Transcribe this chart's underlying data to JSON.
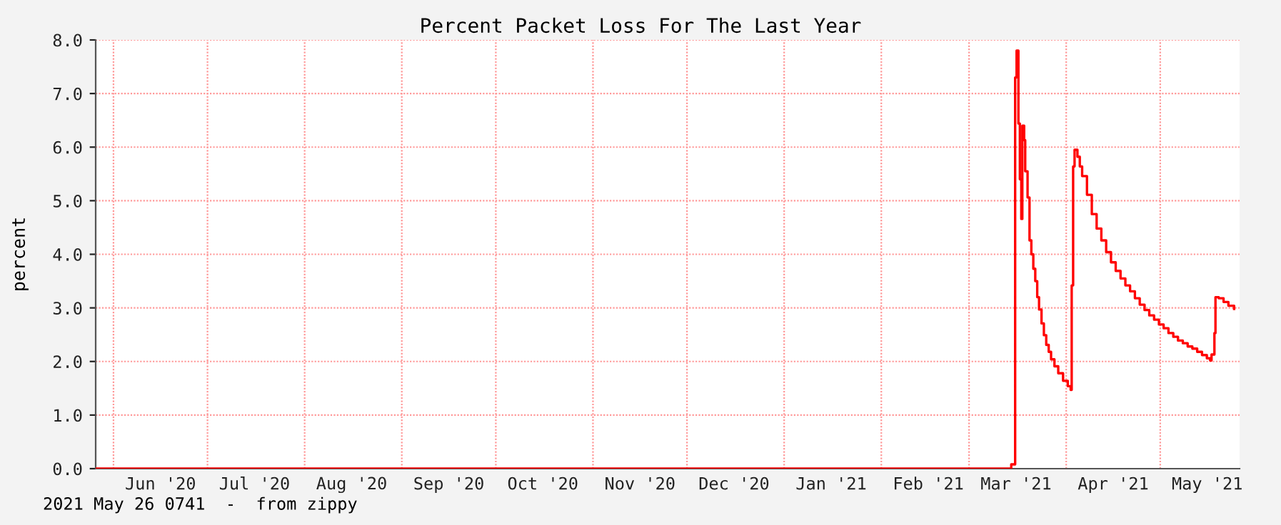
{
  "chart_data": {
    "type": "step",
    "title": "Percent Packet Loss For The Last Year",
    "ylabel": "percent",
    "annotations": [
      "2021 May 26 0741  -  from zippy"
    ],
    "x": [
      "2020-05-26T08:00",
      "2021-03-14T11:00",
      "2021-03-15T17:00",
      "2021-03-16T04:00",
      "2021-03-16T18:00",
      "2021-03-17T05:00",
      "2021-03-17T16:00",
      "2021-03-18T00:00",
      "2021-03-18T14:00",
      "2021-03-18T22:00",
      "2021-03-19T16:00",
      "2021-03-20T07:00",
      "2021-03-20T21:00",
      "2021-03-21T12:00",
      "2021-03-22T03:00",
      "2021-03-22T18:00",
      "2021-03-23T08:00",
      "2021-03-24T03:00",
      "2021-03-24T21:00",
      "2021-03-25T15:00",
      "2021-03-26T10:00",
      "2021-03-27T04:00",
      "2021-03-28T06:00",
      "2021-03-29T11:00",
      "2021-03-31T00:00",
      "2021-04-01T12:00",
      "2021-04-02T10:00",
      "2021-04-02T18:00",
      "2021-04-03T05:00",
      "2021-04-03T16:00",
      "2021-04-04T14:00",
      "2021-04-05T08:00",
      "2021-04-06T02:00",
      "2021-04-07T15:00",
      "2021-04-09T04:00",
      "2021-04-10T17:00",
      "2021-04-12T05:00",
      "2021-04-13T18:00",
      "2021-04-15T07:00",
      "2021-04-16T19:00",
      "2021-04-18T08:00",
      "2021-04-19T21:00",
      "2021-04-21T09:00",
      "2021-04-22T22:00",
      "2021-04-24T11:00",
      "2021-04-26T00:00",
      "2021-04-27T12:00",
      "2021-04-29T01:00",
      "2021-04-30T14:00",
      "2021-05-02T02:00",
      "2021-05-03T15:00",
      "2021-05-05T04:00",
      "2021-05-06T16:00",
      "2021-05-08T05:00",
      "2021-05-09T18:00",
      "2021-05-11T06:00",
      "2021-05-12T19:00",
      "2021-05-14T08:00",
      "2021-05-15T21:00",
      "2021-05-16T22:00",
      "2021-05-17T09:00",
      "2021-05-18T07:00",
      "2021-05-18T15:00",
      "2021-05-19T16:00",
      "2021-05-21T05:00",
      "2021-05-22T18:00",
      "2021-05-24T14:00"
    ],
    "series": [
      {
        "color": "#ff0000",
        "values": [
          0,
          0.08,
          7.3,
          7.8,
          6.44,
          5.4,
          4.66,
          6.4,
          6.13,
          5.55,
          5.06,
          4.26,
          4.0,
          3.73,
          3.5,
          3.2,
          2.97,
          2.71,
          2.49,
          2.31,
          2.18,
          2.04,
          1.91,
          1.78,
          1.64,
          1.54,
          1.47,
          3.42,
          5.64,
          5.95,
          5.82,
          5.64,
          5.46,
          5.11,
          4.75,
          4.48,
          4.26,
          4.04,
          3.85,
          3.69,
          3.55,
          3.42,
          3.31,
          3.18,
          3.06,
          2.96,
          2.86,
          2.78,
          2.69,
          2.62,
          2.53,
          2.46,
          2.39,
          2.34,
          2.28,
          2.24,
          2.18,
          2.12,
          2.06,
          2.02,
          2.13,
          2.53,
          3.2,
          3.18,
          3.11,
          3.04,
          2.98
        ]
      }
    ],
    "xlim": [
      "2020-05-26T07:41",
      "2021-05-26T07:41"
    ],
    "xticks": [
      {
        "value": "2020-06-01",
        "label": null
      },
      {
        "value": "2020-07-01",
        "label": null
      },
      {
        "value": "2020-08-01",
        "label": null
      },
      {
        "value": "2020-09-01",
        "label": null
      },
      {
        "value": "2020-10-01",
        "label": null
      },
      {
        "value": "2020-11-01",
        "label": null
      },
      {
        "value": "2020-12-01",
        "label": null
      },
      {
        "value": "2021-01-01",
        "label": null
      },
      {
        "value": "2021-02-01",
        "label": null
      },
      {
        "value": "2021-03-01",
        "label": null
      },
      {
        "value": "2021-04-01",
        "label": null
      },
      {
        "value": "2021-05-01",
        "label": null
      },
      {
        "value": "2020-06-16",
        "label": "Jun '20"
      },
      {
        "value": "2020-07-16",
        "label": "Jul '20"
      },
      {
        "value": "2020-08-16",
        "label": "Aug '20"
      },
      {
        "value": "2020-09-16",
        "label": "Sep '20"
      },
      {
        "value": "2020-10-16",
        "label": "Oct '20"
      },
      {
        "value": "2020-11-16",
        "label": "Nov '20"
      },
      {
        "value": "2020-12-16",
        "label": "Dec '20"
      },
      {
        "value": "2021-01-16",
        "label": "Jan '21"
      },
      {
        "value": "2021-02-16",
        "label": "Feb '21"
      },
      {
        "value": "2021-03-16",
        "label": "Mar '21"
      },
      {
        "value": "2021-04-16",
        "label": "Apr '21"
      },
      {
        "value": "2021-05-16",
        "label": "May '21"
      }
    ],
    "ylim": [
      0,
      8
    ],
    "yticks": [
      {
        "value": 0,
        "label": "0.0"
      },
      {
        "value": 1,
        "label": "1.0"
      },
      {
        "value": 2,
        "label": "2.0"
      },
      {
        "value": 3,
        "label": "3.0"
      },
      {
        "value": 4,
        "label": "4.0"
      },
      {
        "value": 5,
        "label": "5.0"
      },
      {
        "value": 6,
        "label": "6.0"
      },
      {
        "value": 7,
        "label": "7.0"
      },
      {
        "value": 8,
        "label": "8.0"
      }
    ],
    "grid": true
  }
}
